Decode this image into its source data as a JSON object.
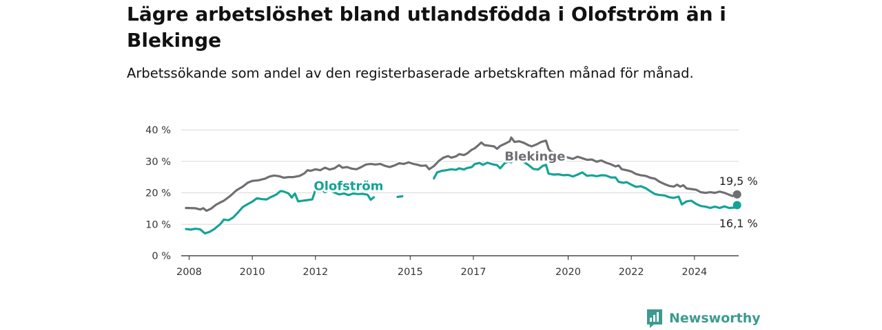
{
  "header": {
    "title": "Lägre arbetslöshet bland utlandsfödda i Olofström än i Blekinge",
    "subtitle": "Arbetssökande som andel av den registerbaserade arbetskraften månad för månad."
  },
  "brand": {
    "name": "Newsworthy",
    "icon": "newsworthy-logo-icon",
    "color": "#3c9a8e"
  },
  "chart_data": {
    "type": "line",
    "title": "Lägre arbetslöshet bland utlandsfödda i Olofström än i Blekinge",
    "subtitle": "Arbetssökande som andel av den registerbaserade arbetskraften månad för månad.",
    "xlabel": "",
    "ylabel": "",
    "xlim": [
      2007.75,
      2025.4
    ],
    "ylim": [
      0,
      40
    ],
    "x_ticks": [
      2008,
      2010,
      2012,
      2015,
      2017,
      2020,
      2022,
      2024
    ],
    "x_tick_labels": [
      "2008",
      "2010",
      "2012",
      "2015",
      "2017",
      "2020",
      "2022",
      "2024"
    ],
    "y_ticks": [
      0,
      10,
      20,
      30,
      40
    ],
    "y_tick_labels": [
      "0 %",
      "10 %",
      "20 %",
      "30 %",
      "40 %"
    ],
    "grid": true,
    "legend": "direct-labels",
    "series": [
      {
        "name": "Blekinge",
        "color": "#6e6e73",
        "label_at": [
          2018.95,
          30.3
        ],
        "end_label": "19,5 %",
        "points": [
          [
            2007.9,
            15.2
          ],
          [
            2008.2,
            15.1
          ],
          [
            2008.35,
            14.7
          ],
          [
            2008.45,
            15.1
          ],
          [
            2008.55,
            14.3
          ],
          [
            2008.7,
            15.0
          ],
          [
            2008.85,
            16.2
          ],
          [
            2009.0,
            17.0
          ],
          [
            2009.1,
            17.5
          ],
          [
            2009.3,
            19.0
          ],
          [
            2009.5,
            20.8
          ],
          [
            2009.7,
            22.0
          ],
          [
            2009.85,
            23.2
          ],
          [
            2010.0,
            23.8
          ],
          [
            2010.2,
            24.0
          ],
          [
            2010.4,
            24.5
          ],
          [
            2010.55,
            25.2
          ],
          [
            2010.7,
            25.5
          ],
          [
            2010.85,
            25.3
          ],
          [
            2011.0,
            24.8
          ],
          [
            2011.15,
            25.0
          ],
          [
            2011.3,
            25.0
          ],
          [
            2011.5,
            25.4
          ],
          [
            2011.65,
            26.2
          ],
          [
            2011.75,
            27.2
          ],
          [
            2011.85,
            27.0
          ],
          [
            2012.0,
            27.5
          ],
          [
            2012.15,
            27.2
          ],
          [
            2012.3,
            28.0
          ],
          [
            2012.45,
            27.4
          ],
          [
            2012.6,
            27.8
          ],
          [
            2012.75,
            28.8
          ],
          [
            2012.85,
            28.0
          ],
          [
            2013.0,
            28.2
          ],
          [
            2013.15,
            27.7
          ],
          [
            2013.3,
            27.5
          ],
          [
            2013.45,
            28.2
          ],
          [
            2013.6,
            29.0
          ],
          [
            2013.75,
            29.2
          ],
          [
            2013.9,
            29.0
          ],
          [
            2014.05,
            29.2
          ],
          [
            2014.2,
            28.6
          ],
          [
            2014.35,
            28.2
          ],
          [
            2014.5,
            28.7
          ],
          [
            2014.65,
            29.4
          ],
          [
            2014.8,
            29.2
          ],
          [
            2014.95,
            29.7
          ],
          [
            2015.1,
            29.2
          ],
          [
            2015.2,
            29.0
          ],
          [
            2015.35,
            28.6
          ],
          [
            2015.5,
            28.7
          ],
          [
            2015.6,
            27.5
          ],
          [
            2015.75,
            28.5
          ],
          [
            2015.9,
            30.1
          ],
          [
            2016.05,
            31.2
          ],
          [
            2016.2,
            31.7
          ],
          [
            2016.3,
            31.2
          ],
          [
            2016.45,
            31.6
          ],
          [
            2016.55,
            32.3
          ],
          [
            2016.7,
            32.0
          ],
          [
            2016.8,
            32.5
          ],
          [
            2016.95,
            33.7
          ],
          [
            2017.05,
            34.2
          ],
          [
            2017.15,
            35.1
          ],
          [
            2017.25,
            36.0
          ],
          [
            2017.35,
            35.2
          ],
          [
            2017.5,
            35.0
          ],
          [
            2017.65,
            34.8
          ],
          [
            2017.75,
            34.0
          ],
          [
            2017.85,
            34.9
          ],
          [
            2018.0,
            35.6
          ],
          [
            2018.15,
            36.4
          ],
          [
            2018.2,
            37.6
          ],
          [
            2018.3,
            36.2
          ],
          [
            2018.45,
            36.4
          ],
          [
            2018.6,
            35.9
          ],
          [
            2018.75,
            35.1
          ],
          [
            2018.85,
            34.8
          ],
          [
            2019.0,
            35.4
          ],
          [
            2019.15,
            36.2
          ],
          [
            2019.3,
            36.6
          ],
          [
            2019.38,
            34.0
          ],
          [
            2019.45,
            33.1
          ],
          [
            2019.55,
            32.7
          ],
          [
            2019.7,
            31.5
          ],
          [
            2019.85,
            31.8
          ],
          [
            2020.0,
            31.2
          ],
          [
            2020.15,
            30.8
          ],
          [
            2020.3,
            31.5
          ],
          [
            2020.45,
            31.0
          ],
          [
            2020.6,
            30.5
          ],
          [
            2020.75,
            30.6
          ],
          [
            2020.9,
            29.9
          ],
          [
            2021.05,
            30.3
          ],
          [
            2021.2,
            29.6
          ],
          [
            2021.35,
            29.1
          ],
          [
            2021.5,
            28.4
          ],
          [
            2021.6,
            28.7
          ],
          [
            2021.7,
            27.5
          ],
          [
            2021.85,
            27.2
          ],
          [
            2022.0,
            26.8
          ],
          [
            2022.15,
            26.0
          ],
          [
            2022.3,
            25.6
          ],
          [
            2022.45,
            25.4
          ],
          [
            2022.6,
            24.8
          ],
          [
            2022.75,
            24.5
          ],
          [
            2022.9,
            23.5
          ],
          [
            2023.05,
            22.8
          ],
          [
            2023.2,
            22.2
          ],
          [
            2023.35,
            22.0
          ],
          [
            2023.45,
            22.6
          ],
          [
            2023.55,
            22.0
          ],
          [
            2023.65,
            22.4
          ],
          [
            2023.75,
            21.4
          ],
          [
            2023.9,
            21.2
          ],
          [
            2024.05,
            21.0
          ],
          [
            2024.2,
            20.2
          ],
          [
            2024.35,
            20.0
          ],
          [
            2024.5,
            20.2
          ],
          [
            2024.65,
            20.0
          ],
          [
            2024.8,
            20.4
          ],
          [
            2024.95,
            20.0
          ],
          [
            2025.1,
            19.4
          ],
          [
            2025.2,
            19.0
          ],
          [
            2025.35,
            19.5
          ]
        ]
      },
      {
        "name": "Olofström",
        "color": "#14a396",
        "label_at": [
          2013.05,
          20.9
        ],
        "end_label": "16,1 %",
        "points": [
          [
            2007.9,
            8.5
          ],
          [
            2008.05,
            8.3
          ],
          [
            2008.2,
            8.6
          ],
          [
            2008.35,
            8.4
          ],
          [
            2008.5,
            7.1
          ],
          [
            2008.65,
            7.6
          ],
          [
            2008.8,
            8.5
          ],
          [
            2009.0,
            10.2
          ],
          [
            2009.1,
            11.5
          ],
          [
            2009.25,
            11.3
          ],
          [
            2009.4,
            12.2
          ],
          [
            2009.55,
            13.8
          ],
          [
            2009.7,
            15.5
          ],
          [
            2009.85,
            16.4
          ],
          [
            2010.0,
            17.2
          ],
          [
            2010.15,
            18.3
          ],
          [
            2010.3,
            18.0
          ],
          [
            2010.45,
            17.9
          ],
          [
            2010.6,
            18.7
          ],
          [
            2010.75,
            19.4
          ],
          [
            2010.9,
            20.6
          ],
          [
            2011.0,
            20.4
          ],
          [
            2011.15,
            19.8
          ],
          [
            2011.25,
            18.5
          ],
          [
            2011.35,
            19.8
          ],
          [
            2011.45,
            17.3
          ],
          [
            2011.6,
            17.5
          ],
          [
            2011.75,
            17.7
          ],
          [
            2011.9,
            17.9
          ],
          [
            2012.0,
            21.0
          ],
          [
            2012.15,
            21.3
          ],
          [
            2012.3,
            20.2
          ],
          [
            2012.45,
            20.8
          ],
          [
            2012.6,
            20.1
          ],
          [
            2012.75,
            19.5
          ],
          [
            2012.9,
            19.8
          ],
          [
            2013.05,
            19.3
          ],
          [
            2013.2,
            19.8
          ],
          [
            2013.35,
            19.6
          ],
          [
            2013.5,
            19.7
          ],
          [
            2013.65,
            19.4
          ],
          [
            2013.75,
            17.8
          ],
          [
            2013.85,
            18.6
          ],
          null,
          [
            2014.6,
            18.7
          ],
          [
            2014.75,
            18.9
          ],
          null,
          [
            2015.75,
            24.6
          ],
          [
            2015.85,
            26.5
          ],
          [
            2016.0,
            27.0
          ],
          [
            2016.15,
            27.2
          ],
          [
            2016.3,
            27.5
          ],
          [
            2016.45,
            27.3
          ],
          [
            2016.55,
            27.8
          ],
          [
            2016.7,
            27.4
          ],
          [
            2016.8,
            27.9
          ],
          [
            2016.95,
            28.2
          ],
          [
            2017.05,
            29.2
          ],
          [
            2017.2,
            29.5
          ],
          [
            2017.3,
            28.9
          ],
          [
            2017.45,
            29.6
          ],
          [
            2017.6,
            29.1
          ],
          [
            2017.75,
            28.8
          ],
          [
            2017.85,
            27.8
          ],
          [
            2018.0,
            29.5
          ],
          [
            2018.1,
            29.9
          ],
          [
            2018.2,
            29.7
          ],
          [
            2018.3,
            31.6
          ],
          [
            2018.4,
            30.4
          ],
          [
            2018.5,
            31.4
          ],
          [
            2018.6,
            29.8
          ],
          [
            2018.75,
            28.8
          ],
          [
            2018.9,
            27.6
          ],
          [
            2019.05,
            27.4
          ],
          [
            2019.2,
            28.6
          ],
          [
            2019.3,
            28.9
          ],
          [
            2019.38,
            26.1
          ],
          [
            2019.55,
            25.8
          ],
          [
            2019.7,
            25.9
          ],
          [
            2019.85,
            25.6
          ],
          [
            2020.0,
            25.7
          ],
          [
            2020.15,
            25.2
          ],
          [
            2020.3,
            25.8
          ],
          [
            2020.45,
            26.5
          ],
          [
            2020.6,
            25.4
          ],
          [
            2020.75,
            25.6
          ],
          [
            2020.9,
            25.3
          ],
          [
            2021.05,
            25.6
          ],
          [
            2021.2,
            25.5
          ],
          [
            2021.35,
            24.9
          ],
          [
            2021.5,
            24.9
          ],
          [
            2021.6,
            23.5
          ],
          [
            2021.75,
            23.2
          ],
          [
            2021.85,
            23.4
          ],
          [
            2022.0,
            22.6
          ],
          [
            2022.15,
            21.9
          ],
          [
            2022.3,
            22.1
          ],
          [
            2022.45,
            21.5
          ],
          [
            2022.6,
            20.5
          ],
          [
            2022.75,
            19.6
          ],
          [
            2022.9,
            19.3
          ],
          [
            2023.05,
            19.2
          ],
          [
            2023.2,
            18.6
          ],
          [
            2023.35,
            18.4
          ],
          [
            2023.5,
            18.8
          ],
          [
            2023.6,
            16.3
          ],
          [
            2023.75,
            17.3
          ],
          [
            2023.9,
            17.5
          ],
          [
            2024.05,
            16.5
          ],
          [
            2024.2,
            15.8
          ],
          [
            2024.35,
            15.6
          ],
          [
            2024.5,
            15.2
          ],
          [
            2024.65,
            15.6
          ],
          [
            2024.8,
            15.2
          ],
          [
            2024.95,
            15.7
          ],
          [
            2025.1,
            15.2
          ],
          [
            2025.25,
            15.3
          ],
          [
            2025.35,
            16.1
          ]
        ]
      }
    ]
  }
}
